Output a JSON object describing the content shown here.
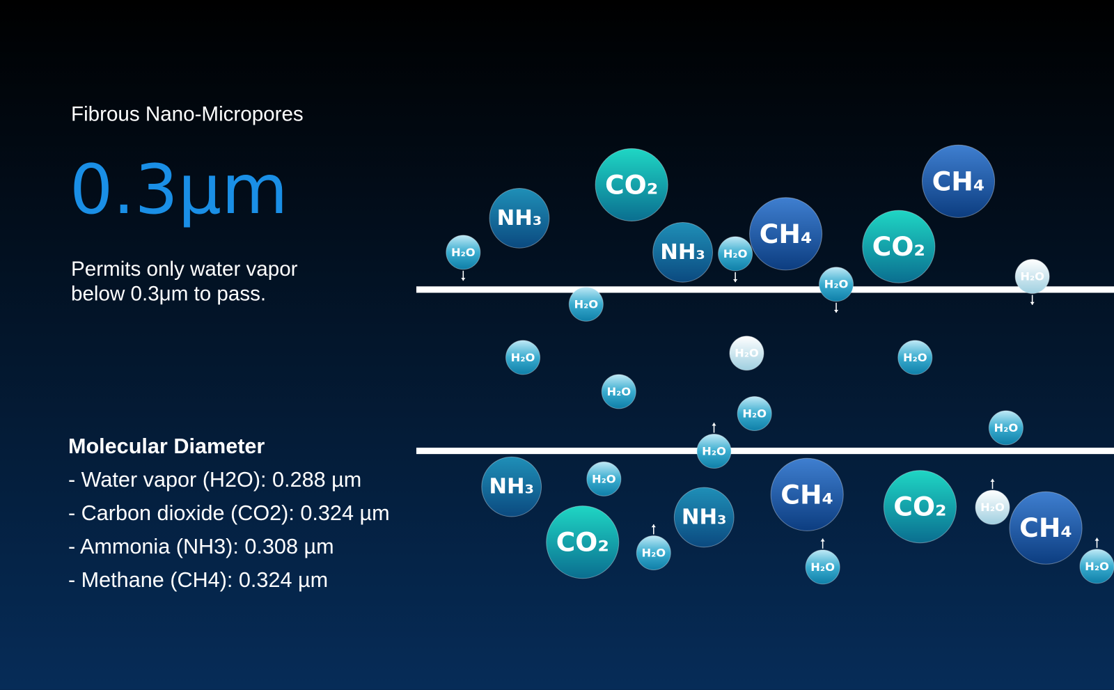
{
  "header": {
    "label": "Fibrous Nano-Micropores",
    "size": "0.3μm",
    "description": [
      "Permits only water vapor",
      "below 0.3μm to pass."
    ]
  },
  "diameters": {
    "title": "Molecular Diameter",
    "items": [
      "- Water vapor (H2O): 0.288 µm",
      "- Carbon dioxide (CO2): 0.324 µm",
      "- Ammonia (NH3): 0.308 µm",
      "- Methane (CH4): 0.324 µm"
    ]
  },
  "molecules": [
    "H₂O",
    "NH₃",
    "CO₂",
    "NH₃",
    "H₂O",
    "CH₄",
    "H₂O",
    "CO₂",
    "CH₄",
    "H₂O",
    "H₂O",
    "H₂O",
    "H₂O",
    "H₂O",
    "H₂O",
    "H₂O",
    "H₂O",
    "H₂O",
    "NH₃",
    "H₂O",
    "CO₂",
    "H₂O",
    "NH₃",
    "CH₄",
    "H₂O",
    "CO₂",
    "H₂O",
    "CH₄",
    "H₂O"
  ]
}
